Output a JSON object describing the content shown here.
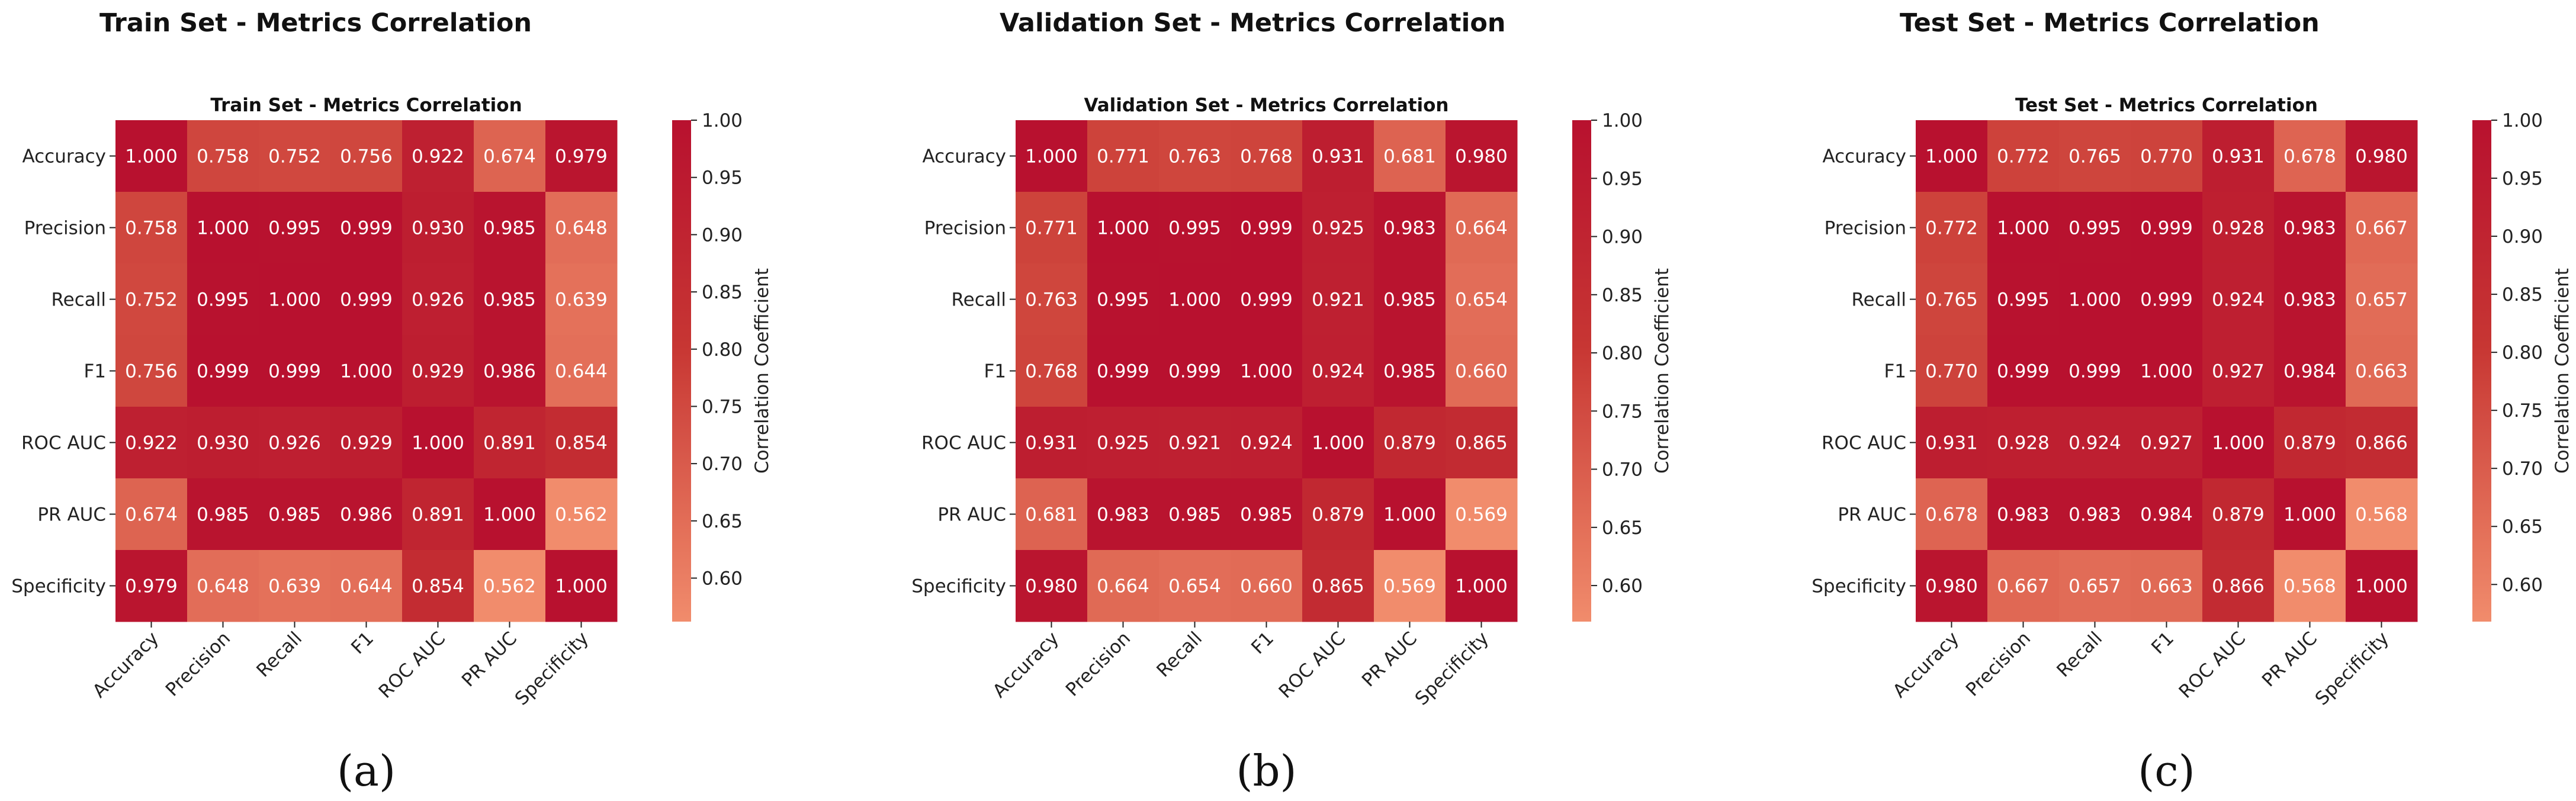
{
  "chart_data": [
    {
      "type": "heatmap",
      "panel_label": "(a)",
      "title": "Train Set - Metrics Correlation",
      "subtitle": "Train Set - Metrics Correlation",
      "labels": [
        "Accuracy",
        "Precision",
        "Recall",
        "F1",
        "ROC AUC",
        "PR AUC",
        "Specificity"
      ],
      "values": [
        [
          1.0,
          0.758,
          0.752,
          0.756,
          0.922,
          0.674,
          0.979
        ],
        [
          0.758,
          1.0,
          0.995,
          0.999,
          0.93,
          0.985,
          0.648
        ],
        [
          0.752,
          0.995,
          1.0,
          0.999,
          0.926,
          0.985,
          0.639
        ],
        [
          0.756,
          0.999,
          0.999,
          1.0,
          0.929,
          0.986,
          0.644
        ],
        [
          0.922,
          0.93,
          0.926,
          0.929,
          1.0,
          0.891,
          0.854
        ],
        [
          0.674,
          0.985,
          0.985,
          0.986,
          0.891,
          1.0,
          0.562
        ],
        [
          0.979,
          0.648,
          0.639,
          0.644,
          0.854,
          0.562,
          1.0
        ]
      ],
      "colorbar": {
        "label": "Correlation Coefficient",
        "range": [
          0.562,
          1.0
        ],
        "ticks": [
          "0.60",
          "0.65",
          "0.70",
          "0.75",
          "0.80",
          "0.85",
          "0.90",
          "0.95",
          "1.00"
        ],
        "tick_values": [
          0.6,
          0.65,
          0.7,
          0.75,
          0.8,
          0.85,
          0.9,
          0.95,
          1.0
        ]
      }
    },
    {
      "type": "heatmap",
      "panel_label": "(b)",
      "title": "Validation Set - Metrics Correlation",
      "subtitle": "Validation Set - Metrics Correlation",
      "labels": [
        "Accuracy",
        "Precision",
        "Recall",
        "F1",
        "ROC AUC",
        "PR AUC",
        "Specificity"
      ],
      "values": [
        [
          1.0,
          0.771,
          0.763,
          0.768,
          0.931,
          0.681,
          0.98
        ],
        [
          0.771,
          1.0,
          0.995,
          0.999,
          0.925,
          0.983,
          0.664
        ],
        [
          0.763,
          0.995,
          1.0,
          0.999,
          0.921,
          0.985,
          0.654
        ],
        [
          0.768,
          0.999,
          0.999,
          1.0,
          0.924,
          0.985,
          0.66
        ],
        [
          0.931,
          0.925,
          0.921,
          0.924,
          1.0,
          0.879,
          0.865
        ],
        [
          0.681,
          0.983,
          0.985,
          0.985,
          0.879,
          1.0,
          0.569
        ],
        [
          0.98,
          0.664,
          0.654,
          0.66,
          0.865,
          0.569,
          1.0
        ]
      ],
      "colorbar": {
        "label": "Correlation Coefficient",
        "range": [
          0.569,
          1.0
        ],
        "ticks": [
          "0.60",
          "0.65",
          "0.70",
          "0.75",
          "0.80",
          "0.85",
          "0.90",
          "0.95",
          "1.00"
        ],
        "tick_values": [
          0.6,
          0.65,
          0.7,
          0.75,
          0.8,
          0.85,
          0.9,
          0.95,
          1.0
        ]
      }
    },
    {
      "type": "heatmap",
      "panel_label": "(c)",
      "title": "Test Set - Metrics Correlation",
      "subtitle": "Test Set - Metrics Correlation",
      "labels": [
        "Accuracy",
        "Precision",
        "Recall",
        "F1",
        "ROC AUC",
        "PR AUC",
        "Specificity"
      ],
      "values": [
        [
          1.0,
          0.772,
          0.765,
          0.77,
          0.931,
          0.678,
          0.98
        ],
        [
          0.772,
          1.0,
          0.995,
          0.999,
          0.928,
          0.983,
          0.667
        ],
        [
          0.765,
          0.995,
          1.0,
          0.999,
          0.924,
          0.983,
          0.657
        ],
        [
          0.77,
          0.999,
          0.999,
          1.0,
          0.927,
          0.984,
          0.663
        ],
        [
          0.931,
          0.928,
          0.924,
          0.927,
          1.0,
          0.879,
          0.866
        ],
        [
          0.678,
          0.983,
          0.983,
          0.984,
          0.879,
          1.0,
          0.568
        ],
        [
          0.98,
          0.667,
          0.657,
          0.663,
          0.866,
          0.568,
          1.0
        ]
      ],
      "colorbar": {
        "label": "Correlation Coefficient",
        "range": [
          0.568,
          1.0
        ],
        "ticks": [
          "0.60",
          "0.65",
          "0.70",
          "0.75",
          "0.80",
          "0.85",
          "0.90",
          "0.95",
          "1.00"
        ],
        "tick_values": [
          0.6,
          0.65,
          0.7,
          0.75,
          0.8,
          0.85,
          0.9,
          0.95,
          1.0
        ]
      }
    }
  ],
  "colors": {
    "low": "#f18c6c",
    "mid": "#c73633",
    "high": "#b8112f",
    "cell_text": "#ffffff"
  }
}
